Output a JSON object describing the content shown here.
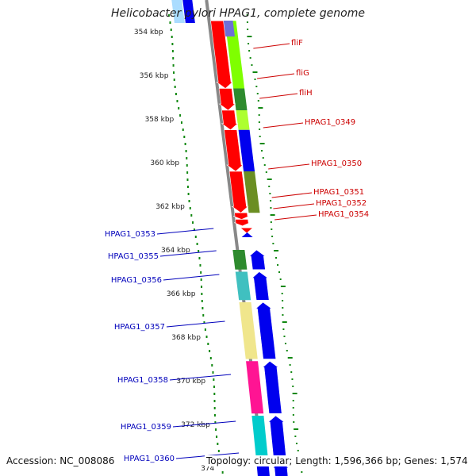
{
  "title": "Helicobacter pylori HPAG1, complete genome",
  "footer": {
    "accession": "Accession: NC_008086",
    "summary": "Topology: circular; Length: 1,596,366 bp; Genes: 1,574"
  },
  "colors": {
    "forward_label": "#cc0000",
    "reverse_label": "#0000bb",
    "backbone": "#888888",
    "gc_dots": "#118811"
  },
  "ticks": [
    {
      "kbp": 354,
      "label": "354 kbp"
    },
    {
      "kbp": 356,
      "label": "356 kbp"
    },
    {
      "kbp": 358,
      "label": "358 kbp"
    },
    {
      "kbp": 360,
      "label": "360 kbp"
    },
    {
      "kbp": 362,
      "label": "362 kbp"
    },
    {
      "kbp": 364,
      "label": "364 kbp"
    },
    {
      "kbp": 366,
      "label": "366 kbp"
    },
    {
      "kbp": 368,
      "label": "368 kbp"
    },
    {
      "kbp": 370,
      "label": "370 kbp"
    },
    {
      "kbp": 372,
      "label": "372 kbp"
    },
    {
      "kbp": 374,
      "label": "374"
    }
  ],
  "forward_genes": [
    {
      "name": "fliF",
      "start": 353.5,
      "end": 356.6
    },
    {
      "name": "fliG",
      "start": 356.6,
      "end": 357.6
    },
    {
      "name": "fliH",
      "start": 357.6,
      "end": 358.5
    },
    {
      "name": "HPAG1_0349",
      "start": 358.5,
      "end": 360.4
    },
    {
      "name": "HPAG1_0350",
      "start": 360.4,
      "end": 362.3
    },
    {
      "name": "HPAG1_0351",
      "start": 362.3,
      "end": 362.6
    },
    {
      "name": "HPAG1_0352",
      "start": 362.6,
      "end": 362.9
    },
    {
      "name": "HPAG1_0354",
      "start": 363.0,
      "end": 363.3
    }
  ],
  "reverse_genes": [
    {
      "name": "HPAG1_0353",
      "start": 363.2,
      "end": 363.4
    },
    {
      "name": "HPAG1_0355",
      "start": 364.0,
      "end": 364.9
    },
    {
      "name": "HPAG1_0356",
      "start": 365.0,
      "end": 366.3
    },
    {
      "name": "HPAG1_0357",
      "start": 366.4,
      "end": 369.0
    },
    {
      "name": "HPAG1_0358",
      "start": 369.1,
      "end": 371.5
    },
    {
      "name": "HPAG1_0359",
      "start": 371.6,
      "end": 373.5
    },
    {
      "name": "HPAG1_0360",
      "start": 373.7,
      "end": 374.5
    }
  ]
}
